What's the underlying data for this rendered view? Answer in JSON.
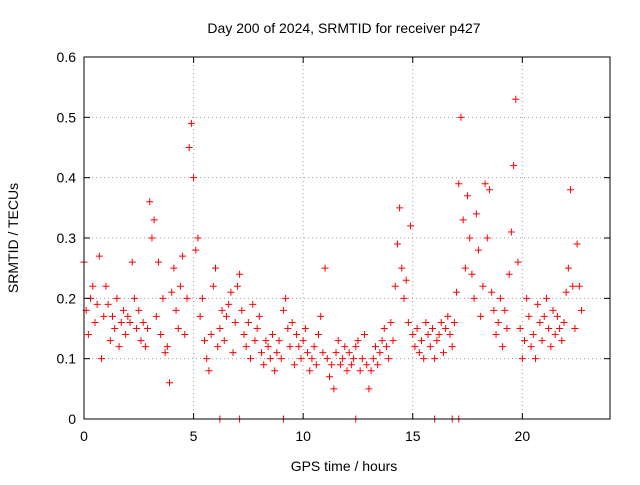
{
  "chart_data": {
    "type": "scatter",
    "title": "Day 200 of 2024, SRMTID for receiver p427",
    "xlabel": "GPS time / hours",
    "ylabel": "SRMTID / TECUs",
    "xlim": [
      0,
      24
    ],
    "ylim": [
      0,
      0.6
    ],
    "x_ticks": [
      0,
      5,
      10,
      15,
      20
    ],
    "x_tick_labels": [
      "0",
      "5",
      "10",
      "15",
      "20"
    ],
    "y_ticks": [
      0,
      0.1,
      0.2,
      0.3,
      0.4,
      0.5,
      0.6
    ],
    "y_tick_labels": [
      "0",
      "0.1",
      "0.2",
      "0.3",
      "0.4",
      "0.5",
      "0.6"
    ],
    "grid": true,
    "marker": "plus",
    "marker_color": "#ff0000",
    "series": [
      {
        "name": "SRMTID",
        "x": [
          0.0,
          0.1,
          0.2,
          0.3,
          0.4,
          0.5,
          0.6,
          0.7,
          0.8,
          0.9,
          1.0,
          1.1,
          1.2,
          1.3,
          1.4,
          1.5,
          1.6,
          1.7,
          1.8,
          1.9,
          2.0,
          2.1,
          2.2,
          2.3,
          2.4,
          2.5,
          2.6,
          2.7,
          2.8,
          2.9,
          3.0,
          3.1,
          3.2,
          3.3,
          3.4,
          3.5,
          3.6,
          3.7,
          3.8,
          3.9,
          4.0,
          4.1,
          4.2,
          4.3,
          4.4,
          4.5,
          4.6,
          4.7,
          4.8,
          4.9,
          5.0,
          5.1,
          5.2,
          5.3,
          5.4,
          5.5,
          5.6,
          5.7,
          5.8,
          5.9,
          6.0,
          6.1,
          6.2,
          6.3,
          6.4,
          6.5,
          6.6,
          6.7,
          6.8,
          6.9,
          7.0,
          7.1,
          7.2,
          7.3,
          7.4,
          7.5,
          7.6,
          7.7,
          7.8,
          7.9,
          8.0,
          8.1,
          8.2,
          8.3,
          8.4,
          8.5,
          8.6,
          8.7,
          8.8,
          8.9,
          9.0,
          9.1,
          9.2,
          9.3,
          9.4,
          9.5,
          9.6,
          9.7,
          9.8,
          9.9,
          10.0,
          10.1,
          10.2,
          10.3,
          10.4,
          10.5,
          10.6,
          10.7,
          10.8,
          10.9,
          11.0,
          11.1,
          11.2,
          11.3,
          11.4,
          11.5,
          11.6,
          11.7,
          11.8,
          11.9,
          12.0,
          12.1,
          12.2,
          12.3,
          12.4,
          12.5,
          12.6,
          12.7,
          12.8,
          12.9,
          13.0,
          13.1,
          13.2,
          13.3,
          13.4,
          13.5,
          13.6,
          13.7,
          13.8,
          13.9,
          14.0,
          14.1,
          14.2,
          14.3,
          14.4,
          14.5,
          14.6,
          14.7,
          14.8,
          14.9,
          15.0,
          15.1,
          15.2,
          15.3,
          15.4,
          15.5,
          15.6,
          15.7,
          15.8,
          15.9,
          16.0,
          16.1,
          16.2,
          16.3,
          16.4,
          16.5,
          16.6,
          16.7,
          16.8,
          16.9,
          17.0,
          17.1,
          17.2,
          17.3,
          17.4,
          17.5,
          17.6,
          17.7,
          17.8,
          17.9,
          18.0,
          18.1,
          18.2,
          18.3,
          18.4,
          18.5,
          18.6,
          18.7,
          18.8,
          18.9,
          19.0,
          19.1,
          19.2,
          19.3,
          19.4,
          19.5,
          19.6,
          19.7,
          19.8,
          19.9,
          20.0,
          20.1,
          20.2,
          20.3,
          20.4,
          20.5,
          20.6,
          20.7,
          20.8,
          20.9,
          21.0,
          21.1,
          21.2,
          21.3,
          21.4,
          21.5,
          21.6,
          21.7,
          21.8,
          21.9,
          22.0,
          22.1,
          22.2,
          22.3,
          22.4,
          22.5,
          22.6,
          22.7,
          6.2,
          7.1,
          9.1,
          12.4,
          16.0,
          16.8,
          17.1
        ],
        "y": [
          0.26,
          0.18,
          0.14,
          0.2,
          0.22,
          0.16,
          0.19,
          0.27,
          0.1,
          0.17,
          0.22,
          0.19,
          0.13,
          0.17,
          0.15,
          0.2,
          0.12,
          0.16,
          0.18,
          0.14,
          0.17,
          0.16,
          0.26,
          0.2,
          0.15,
          0.18,
          0.13,
          0.16,
          0.12,
          0.15,
          0.36,
          0.3,
          0.33,
          0.17,
          0.26,
          0.14,
          0.2,
          0.11,
          0.12,
          0.06,
          0.21,
          0.25,
          0.18,
          0.15,
          0.22,
          0.27,
          0.14,
          0.2,
          0.45,
          0.49,
          0.4,
          0.28,
          0.3,
          0.17,
          0.2,
          0.13,
          0.1,
          0.08,
          0.14,
          0.22,
          0.25,
          0.12,
          0.15,
          0.18,
          0.13,
          0.17,
          0.19,
          0.21,
          0.11,
          0.16,
          0.22,
          0.24,
          0.18,
          0.14,
          0.12,
          0.16,
          0.1,
          0.19,
          0.13,
          0.15,
          0.17,
          0.11,
          0.09,
          0.13,
          0.12,
          0.1,
          0.14,
          0.08,
          0.11,
          0.13,
          0.1,
          0.18,
          0.2,
          0.15,
          0.12,
          0.16,
          0.09,
          0.14,
          0.12,
          0.1,
          0.13,
          0.15,
          0.11,
          0.08,
          0.1,
          0.12,
          0.09,
          0.14,
          0.17,
          0.11,
          0.25,
          0.1,
          0.07,
          0.09,
          0.05,
          0.11,
          0.13,
          0.09,
          0.1,
          0.12,
          0.08,
          0.11,
          0.09,
          0.1,
          0.12,
          0.13,
          0.08,
          0.1,
          0.14,
          0.09,
          0.05,
          0.08,
          0.1,
          0.12,
          0.09,
          0.11,
          0.13,
          0.15,
          0.12,
          0.1,
          0.16,
          0.13,
          0.22,
          0.29,
          0.35,
          0.25,
          0.2,
          0.23,
          0.16,
          0.32,
          0.14,
          0.12,
          0.15,
          0.11,
          0.13,
          0.1,
          0.16,
          0.14,
          0.12,
          0.15,
          0.1,
          0.13,
          0.14,
          0.16,
          0.11,
          0.15,
          0.17,
          0.14,
          0.12,
          0.16,
          0.21,
          0.39,
          0.5,
          0.33,
          0.25,
          0.37,
          0.3,
          0.24,
          0.2,
          0.34,
          0.28,
          0.17,
          0.22,
          0.39,
          0.3,
          0.38,
          0.21,
          0.18,
          0.14,
          0.16,
          0.2,
          0.12,
          0.18,
          0.15,
          0.24,
          0.31,
          0.42,
          0.53,
          0.26,
          0.15,
          0.1,
          0.13,
          0.2,
          0.17,
          0.12,
          0.14,
          0.1,
          0.19,
          0.16,
          0.13,
          0.17,
          0.2,
          0.15,
          0.12,
          0.18,
          0.14,
          0.17,
          0.15,
          0.13,
          0.16,
          0.21,
          0.25,
          0.38,
          0.22,
          0.15,
          0.29,
          0.22,
          0.18,
          0.0,
          0.0,
          0.0,
          0.0,
          0.0,
          0.0,
          0.0
        ]
      }
    ]
  }
}
